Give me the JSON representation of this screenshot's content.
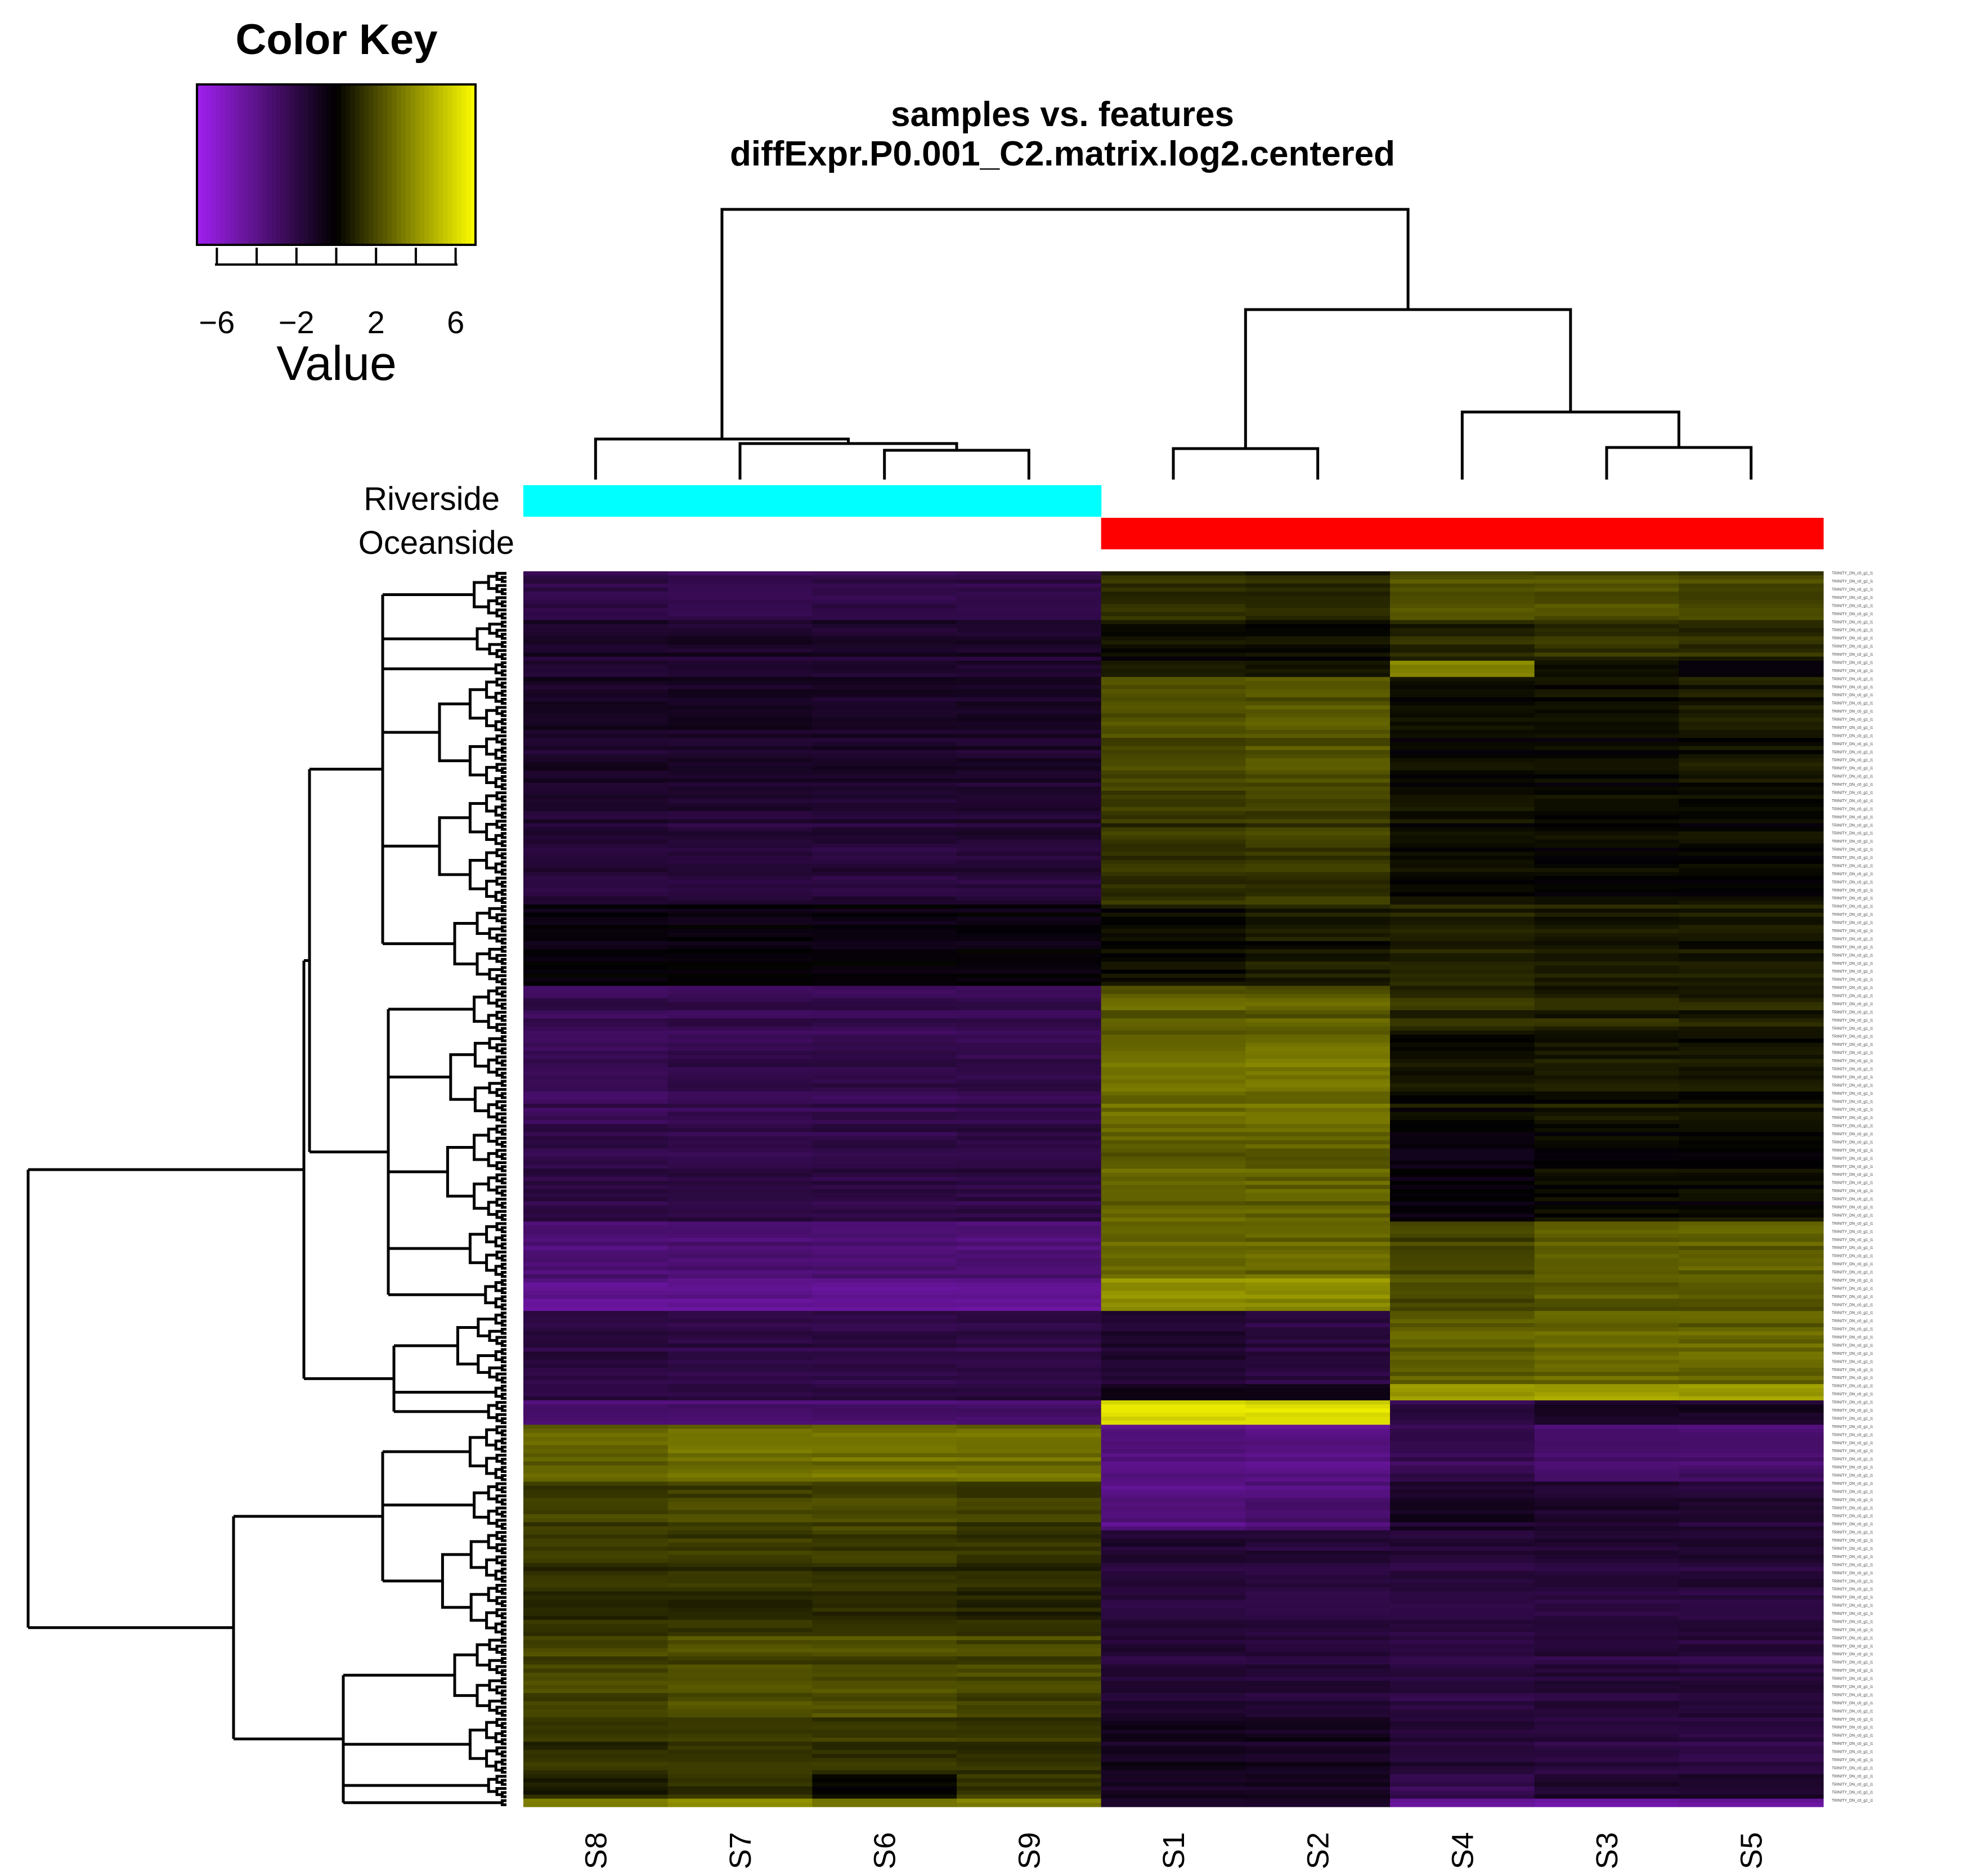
{
  "chart_data": {
    "type": "heatmap",
    "title": "samples vs. features",
    "subtitle": "diffExpr.P0.001_C2.matrix.log2.centered",
    "columns": [
      "S8",
      "S7",
      "S6",
      "S9",
      "S1",
      "S2",
      "S4",
      "S3",
      "S5"
    ],
    "column_groups": [
      {
        "name": "Riverside",
        "members": [
          "S8",
          "S7",
          "S6",
          "S9"
        ],
        "color": "#00ffff"
      },
      {
        "name": "Oceanside",
        "members": [
          "S1",
          "S2",
          "S4",
          "S3",
          "S5"
        ],
        "color": "#ff0000"
      }
    ],
    "color_key": {
      "title": "Color Key",
      "label": "Value",
      "range": [
        -7,
        7
      ],
      "tick_values": [
        -6,
        -2,
        2,
        6
      ],
      "tick_labels": [
        "−6",
        "−2",
        "2",
        "6"
      ],
      "low_color": "#a020f0",
      "mid_color": "#000000",
      "high_color": "#ffff00"
    },
    "row_blocks_note": "Approximate log2-centered values per row cluster (estimated from colour)",
    "row_blocks": [
      {
        "rows": 12,
        "values": [
          -2.2,
          -2.4,
          -2.2,
          -2.2,
          1.2,
          1.0,
          2.2,
          2.0,
          1.8
        ]
      },
      {
        "rows": 10,
        "values": [
          -1.2,
          -1.2,
          -1.2,
          -1.2,
          0.4,
          0.2,
          1.0,
          1.4,
          1.2
        ]
      },
      {
        "rows": 4,
        "values": [
          -1.0,
          -1.0,
          -1.0,
          -1.0,
          1.0,
          0.8,
          4.0,
          0.8,
          0.0
        ]
      },
      {
        "rows": 28,
        "values": [
          -1.2,
          -1.2,
          -1.2,
          -1.2,
          2.0,
          2.2,
          0.2,
          0.2,
          0.6
        ]
      },
      {
        "rows": 28,
        "values": [
          -1.6,
          -1.6,
          -1.6,
          -1.6,
          1.4,
          1.6,
          0.4,
          0.2,
          0.2
        ]
      },
      {
        "rows": 20,
        "values": [
          -0.4,
          -0.4,
          -0.4,
          -0.4,
          0.2,
          0.6,
          0.8,
          0.6,
          0.6
        ]
      },
      {
        "rows": 12,
        "values": [
          -2.4,
          -2.4,
          -2.4,
          -2.4,
          2.6,
          2.6,
          1.2,
          1.0,
          0.8
        ]
      },
      {
        "rows": 22,
        "values": [
          -2.6,
          -2.2,
          -2.2,
          -2.2,
          3.0,
          3.2,
          0.4,
          0.6,
          0.6
        ]
      },
      {
        "rows": 24,
        "values": [
          -2.0,
          -2.0,
          -2.0,
          -2.0,
          2.6,
          2.6,
          -0.4,
          0.2,
          0.2
        ]
      },
      {
        "rows": 14,
        "values": [
          -3.4,
          -3.4,
          -3.4,
          -3.4,
          2.8,
          2.8,
          1.8,
          2.6,
          2.6
        ]
      },
      {
        "rows": 8,
        "values": [
          -4.2,
          -4.2,
          -4.2,
          -4.2,
          4.0,
          4.0,
          2.0,
          2.4,
          2.4
        ]
      },
      {
        "rows": 18,
        "values": [
          -1.8,
          -2.0,
          -2.0,
          -2.0,
          -1.4,
          -1.8,
          2.6,
          2.8,
          2.8
        ]
      },
      {
        "rows": 4,
        "values": [
          -1.8,
          -1.8,
          -1.8,
          -1.8,
          -0.6,
          -0.6,
          4.4,
          4.4,
          4.4
        ]
      },
      {
        "rows": 6,
        "values": [
          -3.2,
          -3.2,
          -3.2,
          -3.2,
          6.0,
          6.0,
          -2.0,
          -1.2,
          -1.2
        ]
      },
      {
        "rows": 14,
        "values": [
          2.6,
          3.0,
          3.0,
          3.0,
          -3.8,
          -4.0,
          -2.4,
          -3.2,
          -3.2
        ]
      },
      {
        "rows": 12,
        "values": [
          1.6,
          1.8,
          1.8,
          1.6,
          -3.8,
          -3.4,
          -1.2,
          -1.4,
          -1.6
        ]
      },
      {
        "rows": 26,
        "values": [
          1.4,
          1.4,
          1.4,
          1.2,
          -1.6,
          -1.8,
          -1.8,
          -1.6,
          -1.6
        ]
      },
      {
        "rows": 20,
        "values": [
          1.8,
          2.0,
          2.0,
          1.8,
          -1.6,
          -1.8,
          -2.0,
          -1.8,
          -1.8
        ]
      },
      {
        "rows": 14,
        "values": [
          1.4,
          1.6,
          1.4,
          1.4,
          -0.8,
          -1.0,
          -1.6,
          -1.8,
          -2.0
        ]
      },
      {
        "rows": 6,
        "values": [
          0.8,
          1.2,
          0.2,
          1.4,
          -1.0,
          -1.0,
          -2.4,
          -1.4,
          -1.4
        ]
      },
      {
        "rows": 2,
        "values": [
          3.6,
          4.0,
          3.2,
          3.6,
          -1.2,
          -1.2,
          -4.6,
          -4.6,
          -4.6
        ]
      }
    ]
  }
}
